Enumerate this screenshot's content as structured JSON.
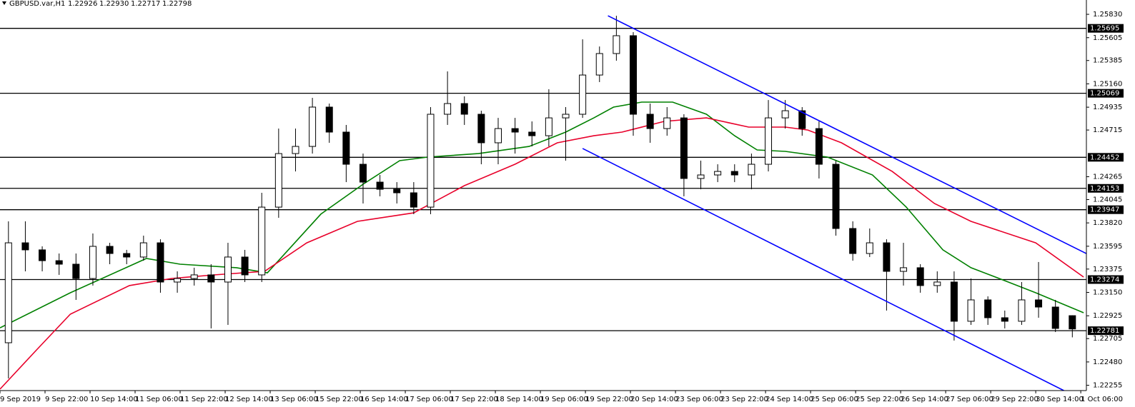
{
  "chart_data": {
    "type": "candlestick",
    "title": "GBPUSD.var,H1",
    "quote_labels": [
      "1.22926",
      "1.22930",
      "1.22717",
      "1.22798"
    ],
    "xlim": [
      0,
      386
    ],
    "ylim": [
      1.22204,
      1.25968
    ],
    "yticks": [
      {
        "value": 1.2583,
        "label": "1.25830"
      },
      1.25605,
      1.25385,
      {
        "value": 1.2516,
        "label": "1.25160"
      },
      1.24935,
      1.24715,
      1.24265,
      1.24045,
      {
        "value": 1.2382,
        "label": "1.23820"
      },
      1.23595,
      1.23375,
      {
        "value": 1.2315,
        "label": "1.23150"
      },
      1.22925,
      1.22705,
      {
        "value": 1.2248,
        "label": "1.22480"
      },
      1.22255
    ],
    "xticks": [
      {
        "value": 0,
        "label": "9 Sep 2019"
      },
      {
        "value": 16,
        "label": "9 Sep 22:00"
      },
      {
        "value": 32,
        "label": "10 Sep 14:00"
      },
      {
        "value": 48,
        "label": "11 Sep 06:00"
      },
      {
        "value": 64,
        "label": "11 Sep 22:00"
      },
      {
        "value": 80,
        "label": "12 Sep 14:00"
      },
      {
        "value": 96,
        "label": "13 Sep 06:00"
      },
      {
        "value": 112,
        "label": "15 Sep 22:00"
      },
      {
        "value": 128,
        "label": "16 Sep 14:00"
      },
      {
        "value": 144,
        "label": "17 Sep 06:00"
      },
      {
        "value": 160,
        "label": "17 Sep 22:00"
      },
      {
        "value": 176,
        "label": "18 Sep 14:00"
      },
      {
        "value": 192,
        "label": "19 Sep 06:00"
      },
      {
        "value": 208,
        "label": "19 Sep 22:00"
      },
      {
        "value": 224,
        "label": "20 Sep 14:00"
      },
      {
        "value": 240,
        "label": "23 Sep 06:00"
      },
      {
        "value": 256,
        "label": "23 Sep 22:00"
      },
      {
        "value": 272,
        "label": "24 Sep 14:00"
      },
      {
        "value": 288,
        "label": "25 Sep 06:00"
      },
      {
        "value": 304,
        "label": "25 Sep 22:00"
      },
      {
        "value": 320,
        "label": "26 Sep 14:00"
      },
      {
        "value": 336,
        "label": "27 Sep 06:00"
      },
      {
        "value": 352,
        "label": "29 Sep 22:00"
      },
      {
        "value": 368,
        "label": "30 Sep 14:00"
      },
      {
        "value": 384,
        "label": "1 Oct 06:00"
      }
    ],
    "candle_color": "#000000",
    "candles": {
      "x": [
        3,
        9,
        15,
        21,
        27,
        33,
        39,
        45,
        51,
        57,
        63,
        69,
        75,
        81,
        87,
        93,
        99,
        105,
        111,
        117,
        123,
        129,
        135,
        141,
        147,
        153,
        159,
        165,
        171,
        177,
        183,
        189,
        195,
        201,
        207,
        213,
        219,
        225,
        231,
        237,
        243,
        249,
        255,
        261,
        267,
        273,
        279,
        285,
        291,
        297,
        303,
        309,
        315,
        321,
        327,
        333,
        339,
        345,
        351,
        357,
        363,
        369,
        375,
        381
      ],
      "open": [
        1.22665,
        1.23628,
        1.2356,
        1.23456,
        1.23422,
        1.23284,
        1.23594,
        1.23525,
        1.23491,
        1.23628,
        1.2325,
        1.23284,
        1.23319,
        1.2325,
        1.23491,
        1.23319,
        1.23972,
        1.24488,
        1.24557,
        1.24936,
        1.24695,
        1.24385,
        1.24213,
        1.24144,
        1.2411,
        1.23972,
        1.24867,
        1.2497,
        1.24867,
        1.24592,
        1.24729,
        1.24695,
        1.2466,
        1.24832,
        1.24867,
        1.25245,
        1.25452,
        1.25624,
        1.24867,
        1.24729,
        1.24832,
        1.24248,
        1.24282,
        1.24316,
        1.24282,
        1.24385,
        1.24832,
        1.24901,
        1.24729,
        1.24385,
        1.23766,
        1.23525,
        1.23628,
        1.23353,
        1.23388,
        1.23216,
        1.2325,
        1.22872,
        1.23078,
        1.22906,
        1.22872,
        1.23078,
        1.23009,
        1.22926
      ],
      "high": [
        1.23835,
        1.23835,
        1.23594,
        1.23525,
        1.23525,
        1.23718,
        1.23628,
        1.2356,
        1.23697,
        1.23662,
        1.23353,
        1.23388,
        1.23422,
        1.23628,
        1.2356,
        1.2411,
        1.24729,
        1.24729,
        1.25025,
        1.2497,
        1.24764,
        1.24488,
        1.24282,
        1.24213,
        1.24213,
        1.24936,
        1.2528,
        1.25039,
        1.24901,
        1.24832,
        1.24832,
        1.24798,
        1.25108,
        1.24936,
        1.25589,
        1.2552,
        1.25816,
        1.25658,
        1.2497,
        1.24936,
        1.24867,
        1.2442,
        1.24385,
        1.24385,
        1.24488,
        1.25004,
        1.25004,
        1.24936,
        1.24798,
        1.2442,
        1.23835,
        1.23766,
        1.23662,
        1.23628,
        1.23422,
        1.23353,
        1.23353,
        1.23284,
        1.23112,
        1.22975,
        1.2325,
        1.23443,
        1.23078,
        1.2293
      ],
      "low": [
        1.22321,
        1.23353,
        1.23353,
        1.23319,
        1.23078,
        1.23216,
        1.23422,
        1.23422,
        1.23456,
        1.23147,
        1.23147,
        1.23216,
        1.22803,
        1.22837,
        1.2325,
        1.2325,
        1.23869,
        1.24316,
        1.24488,
        1.24592,
        1.24213,
        1.24007,
        1.24076,
        1.24007,
        1.23904,
        1.23904,
        1.24764,
        1.24764,
        1.24385,
        1.24385,
        1.24488,
        1.24557,
        1.24557,
        1.2442,
        1.24832,
        1.25177,
        1.25383,
        1.2466,
        1.24592,
        1.2466,
        1.24076,
        1.24144,
        1.24213,
        1.24213,
        1.24144,
        1.24316,
        1.24729,
        1.2466,
        1.24248,
        1.23697,
        1.23456,
        1.23491,
        1.22975,
        1.23216,
        1.23147,
        1.23147,
        1.22686,
        1.22837,
        1.22837,
        1.22803,
        1.22837,
        1.22906,
        1.22768,
        1.22717
      ],
      "close": [
        1.23628,
        1.2356,
        1.23456,
        1.23422,
        1.23284,
        1.23594,
        1.23525,
        1.23491,
        1.23628,
        1.2325,
        1.23284,
        1.23319,
        1.2325,
        1.23491,
        1.23319,
        1.23972,
        1.24488,
        1.24557,
        1.24936,
        1.24695,
        1.24385,
        1.24213,
        1.24144,
        1.2411,
        1.23972,
        1.24867,
        1.2497,
        1.24867,
        1.24592,
        1.24729,
        1.24695,
        1.2466,
        1.24832,
        1.24867,
        1.25245,
        1.25452,
        1.25624,
        1.24867,
        1.24729,
        1.24832,
        1.24248,
        1.24282,
        1.24316,
        1.24282,
        1.24385,
        1.24832,
        1.24901,
        1.24729,
        1.24385,
        1.23766,
        1.23525,
        1.23628,
        1.23353,
        1.23388,
        1.23216,
        1.2325,
        1.22872,
        1.23078,
        1.22906,
        1.22872,
        1.23078,
        1.23009,
        1.22803,
        1.22798
      ]
    },
    "moving_averages": [
      {
        "color": "#008000",
        "x": [
          0,
          25,
          52,
          64,
          84,
          95,
          114,
          129,
          142,
          152,
          170,
          188,
          201,
          211,
          218,
          228,
          239,
          251,
          261,
          269,
          279,
          294,
          310,
          322,
          335,
          345,
          355,
          368,
          385
        ],
        "values": [
          1.22809,
          1.23147,
          1.23477,
          1.23422,
          1.23388,
          1.23339,
          1.23904,
          1.24193,
          1.2442,
          1.24454,
          1.24488,
          1.24557,
          1.24695,
          1.24832,
          1.24936,
          1.24984,
          1.24984,
          1.24867,
          1.2466,
          1.24523,
          1.24509,
          1.24454,
          1.24282,
          1.23972,
          1.2356,
          1.23388,
          1.23284,
          1.23147,
          1.22954
        ]
      },
      {
        "color": "#e8002a",
        "x": [
          0,
          13,
          25,
          46,
          61,
          76,
          94,
          109,
          127,
          147,
          165,
          183,
          198,
          211,
          221,
          236,
          251,
          266,
          279,
          287,
          299,
          317,
          332,
          345,
          368,
          385
        ],
        "values": [
          1.22218,
          1.22596,
          1.2294,
          1.23216,
          1.23284,
          1.23319,
          1.23353,
          1.23628,
          1.23835,
          1.23917,
          1.24179,
          1.24385,
          1.24592,
          1.2466,
          1.24695,
          1.24798,
          1.24832,
          1.24743,
          1.24743,
          1.24715,
          1.24592,
          1.24316,
          1.24007,
          1.23835,
          1.23628,
          1.23298
        ]
      }
    ],
    "trendline_color": "#0000ff",
    "trendlines": [
      {
        "x": [
          216,
          387
        ],
        "values": [
          1.25816,
          1.23511
        ]
      },
      {
        "x": [
          207,
          378
        ],
        "values": [
          1.24537,
          1.22204
        ]
      }
    ],
    "level_color": "#000000",
    "levels": [
      1.25695,
      1.25069,
      1.24452,
      1.24153,
      1.23947,
      1.23274,
      1.22781
    ]
  }
}
